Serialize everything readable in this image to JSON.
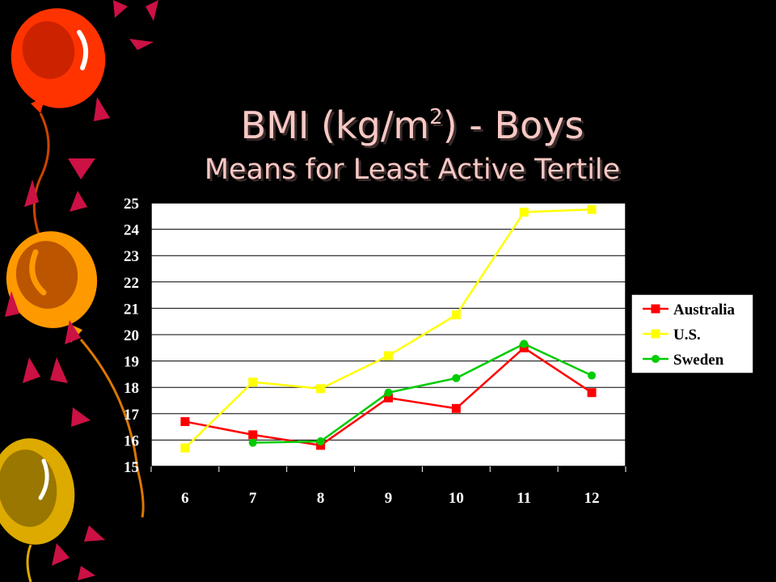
{
  "slide": {
    "title_prefix": "BMI (kg/m",
    "title_superscript": "2",
    "title_suffix": ") -  Boys",
    "subtitle": "Means for Least Active Tertile"
  },
  "colors": {
    "background": "#000000",
    "title": "#f8c8c4",
    "plot_area": "#ffffff",
    "Australia": "#ff0000",
    "U.S.": "#ffff00",
    "Sweden": "#00cc00"
  },
  "chart_data": {
    "type": "line",
    "title": "",
    "xlabel": "",
    "ylabel": "",
    "x": [
      6,
      7,
      8,
      9,
      10,
      11,
      12
    ],
    "ylim": [
      15,
      25
    ],
    "yticks": [
      15,
      16,
      17,
      18,
      19,
      20,
      21,
      22,
      23,
      24,
      25
    ],
    "grid": true,
    "legend_position": "right",
    "series": [
      {
        "name": "Australia",
        "marker": "square",
        "color": "#ff0000",
        "values": [
          16.7,
          16.2,
          15.8,
          17.6,
          17.2,
          19.5,
          17.8
        ]
      },
      {
        "name": "U.S.",
        "marker": "square",
        "color": "#ffff00",
        "values": [
          15.7,
          18.2,
          17.95,
          19.2,
          20.75,
          24.65,
          24.75
        ]
      },
      {
        "name": "Sweden",
        "marker": "circle",
        "color": "#00cc00",
        "values": [
          null,
          15.9,
          15.95,
          17.8,
          18.35,
          19.65,
          18.45
        ]
      }
    ]
  }
}
